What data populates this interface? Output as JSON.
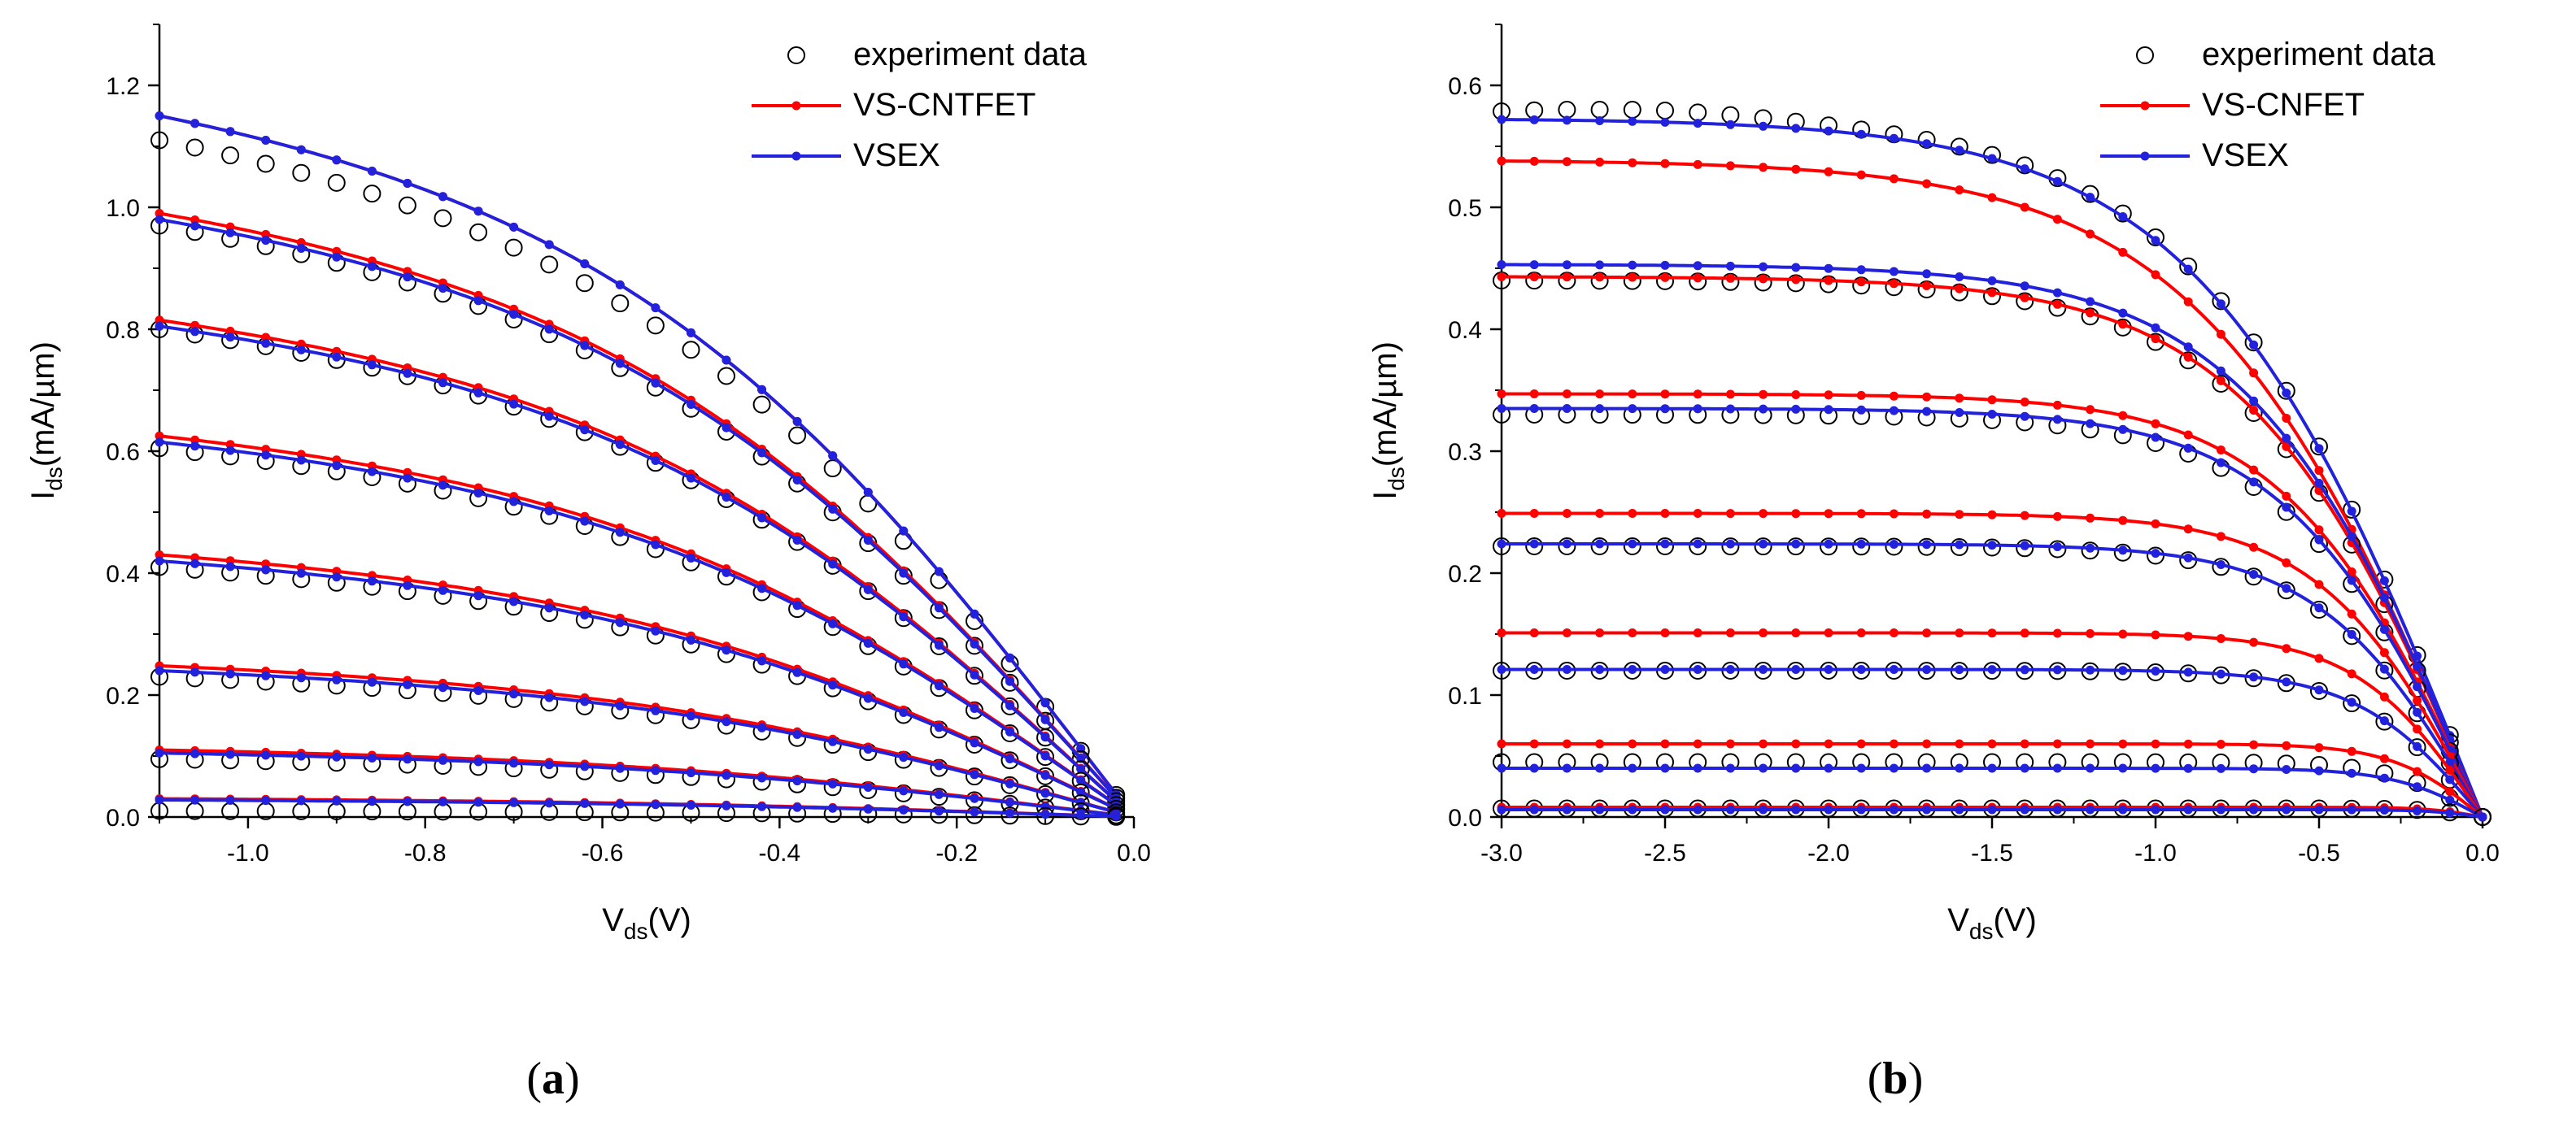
{
  "chart_data": [
    {
      "panel_label_letter": "a",
      "type": "line",
      "xlabel_main": "V",
      "xlabel_sub": "ds",
      "xlabel_unit": "(V)",
      "ylabel_main": "I",
      "ylabel_sub": "ds",
      "ylabel_unit": "(mA/µm)",
      "xlim": [
        -1.1,
        0.0
      ],
      "ylim": [
        0.0,
        1.3
      ],
      "xticks": [
        -1.0,
        -0.8,
        -0.6,
        -0.4,
        -0.2,
        0.0
      ],
      "xtick_labels": [
        "-1.0",
        "-0.8",
        "-0.6",
        "-0.4",
        "-0.2",
        "0.0"
      ],
      "yticks": [
        0.0,
        0.2,
        0.4,
        0.6,
        0.8,
        1.0,
        1.2
      ],
      "ytick_labels": [
        "0.0",
        "0.2",
        "0.4",
        "0.6",
        "0.8",
        "1.0",
        "1.2"
      ],
      "legend": {
        "position": "top-right",
        "entries": [
          {
            "label": "experiment data",
            "style": "circle",
            "color": "#000000"
          },
          {
            "label": "VS-CNTFET",
            "style": "line-dot",
            "color": "#ff0000"
          },
          {
            "label": "VSEX",
            "style": "line-dot",
            "color": "#2222dd"
          }
        ]
      },
      "x_end": -0.02,
      "model": "a",
      "curves": [
        {
          "saturation_current": 1.15,
          "vsex_current": 1.15,
          "experiment_current": 1.11
        },
        {
          "saturation_current": 0.99,
          "vsex_current": 0.98,
          "experiment_current": 0.97
        },
        {
          "saturation_current": 0.815,
          "vsex_current": 0.805,
          "experiment_current": 0.8
        },
        {
          "saturation_current": 0.625,
          "vsex_current": 0.615,
          "experiment_current": 0.605
        },
        {
          "saturation_current": 0.43,
          "vsex_current": 0.42,
          "experiment_current": 0.41
        },
        {
          "saturation_current": 0.248,
          "vsex_current": 0.24,
          "experiment_current": 0.23
        },
        {
          "saturation_current": 0.11,
          "vsex_current": 0.105,
          "experiment_current": 0.095
        },
        {
          "saturation_current": 0.03,
          "vsex_current": 0.028,
          "experiment_current": 0.01
        }
      ]
    },
    {
      "panel_label_letter": "b",
      "type": "line",
      "xlabel_main": "V",
      "xlabel_sub": "ds",
      "xlabel_unit": "(V)",
      "ylabel_main": "I",
      "ylabel_sub": "ds",
      "ylabel_unit": "(mA/µm)",
      "xlim": [
        -3.0,
        0.0
      ],
      "ylim": [
        0.0,
        0.65
      ],
      "xticks": [
        -3.0,
        -2.5,
        -2.0,
        -1.5,
        -1.0,
        -0.5,
        0.0
      ],
      "xtick_labels": [
        "-3.0",
        "-2.5",
        "-2.0",
        "-1.5",
        "-1.0",
        "-0.5",
        "0.0"
      ],
      "yticks": [
        0.0,
        0.1,
        0.2,
        0.3,
        0.4,
        0.5,
        0.6
      ],
      "ytick_labels": [
        "0.0",
        "0.1",
        "0.2",
        "0.3",
        "0.4",
        "0.5",
        "0.6"
      ],
      "legend": {
        "position": "top-right",
        "entries": [
          {
            "label": "experiment data",
            "style": "circle",
            "color": "#000000"
          },
          {
            "label": "VS-CNFET",
            "style": "line-dot",
            "color": "#ff0000"
          },
          {
            "label": "VSEX",
            "style": "line-dot",
            "color": "#2222dd"
          }
        ]
      },
      "x_end": 0.0,
      "model": "b",
      "curves": [
        {
          "vscnfet_current": 0.538,
          "vsex_current": 0.572,
          "experiment_current": 0.575,
          "knee_voltage": 1.55,
          "experiment_peak": 0.58
        },
        {
          "vscnfet_current": 0.443,
          "vsex_current": 0.453,
          "experiment_current": 0.44,
          "knee_voltage": 1.3
        },
        {
          "vscnfet_current": 0.347,
          "vsex_current": 0.335,
          "experiment_current": 0.33,
          "knee_voltage": 1.1
        },
        {
          "vscnfet_current": 0.249,
          "vsex_current": 0.224,
          "experiment_current": 0.222,
          "knee_voltage": 0.9
        },
        {
          "vscnfet_current": 0.151,
          "vsex_current": 0.121,
          "experiment_current": 0.12,
          "knee_voltage": 0.7
        },
        {
          "vscnfet_current": 0.06,
          "vsex_current": 0.04,
          "experiment_current": 0.045,
          "knee_voltage": 0.5
        },
        {
          "vscnfet_current": 0.008,
          "vsex_current": 0.006,
          "experiment_current": 0.007,
          "knee_voltage": 0.3
        }
      ]
    }
  ]
}
